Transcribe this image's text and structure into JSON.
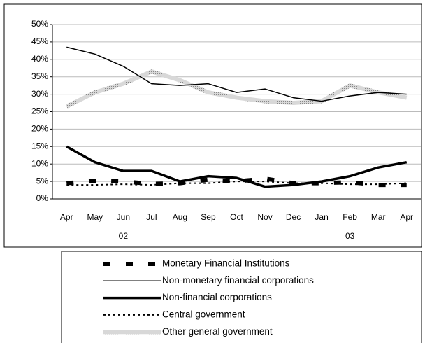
{
  "chart_data": {
    "type": "line",
    "categories": [
      "Apr",
      "May",
      "Jun",
      "Jul",
      "Aug",
      "Sep",
      "Oct",
      "Nov",
      "Dec",
      "Jan",
      "Feb",
      "Mar",
      "Apr"
    ],
    "category_groups": [
      null,
      null,
      "02",
      null,
      null,
      null,
      null,
      null,
      null,
      null,
      "03",
      null,
      null
    ],
    "ylim": [
      0,
      50
    ],
    "yticks": [
      {
        "value": 0,
        "label": "0%"
      },
      {
        "value": 5,
        "label": "5%"
      },
      {
        "value": 10,
        "label": "10%"
      },
      {
        "value": 15,
        "label": "15%"
      },
      {
        "value": 20,
        "label": "20%"
      },
      {
        "value": 25,
        "label": "25%"
      },
      {
        "value": 30,
        "label": "30%"
      },
      {
        "value": 35,
        "label": "35%"
      },
      {
        "value": 40,
        "label": "40%"
      },
      {
        "value": 45,
        "label": "45%"
      },
      {
        "value": 50,
        "label": "50%"
      }
    ],
    "grid": true,
    "legend": "bottom",
    "series": [
      {
        "name": "Monetary Financial Institutions",
        "color": "#000000",
        "values": [
          4.5,
          5.2,
          5,
          4.3,
          4.5,
          5.5,
          5,
          5.8,
          4.5,
          4.5,
          4.8,
          4,
          4
        ]
      },
      {
        "name": "Non-monetary financial corporations",
        "color": "#000000",
        "values": [
          43.5,
          41.5,
          38,
          33,
          32.5,
          33,
          30.5,
          31.5,
          29,
          28,
          29.5,
          30.5,
          30
        ]
      },
      {
        "name": "Non-financial corporations",
        "color": "#000000",
        "values": [
          15,
          10.5,
          8,
          8,
          5,
          6.5,
          6,
          3.5,
          4,
          5,
          6.5,
          9,
          10.5
        ]
      },
      {
        "name": "Central government",
        "color": "#000000",
        "values": [
          4,
          4,
          4.2,
          4,
          4.5,
          4.5,
          5,
          5,
          4.5,
          4.5,
          4.2,
          4.2,
          4.5
        ]
      },
      {
        "name": "Other general government",
        "color": "#b4b4b4",
        "values": [
          26.5,
          30.5,
          33,
          36.5,
          34,
          30.5,
          29,
          28,
          27.5,
          28,
          32.5,
          30.5,
          29
        ]
      }
    ]
  }
}
